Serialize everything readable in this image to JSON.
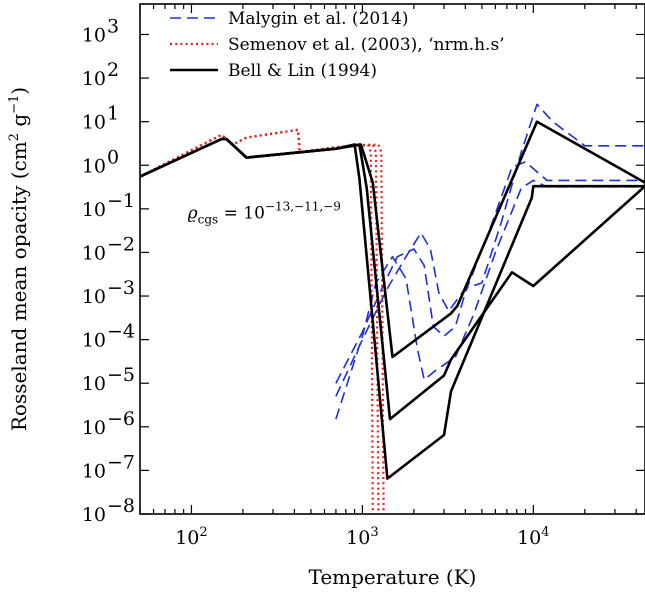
{
  "chart_data": {
    "type": "line",
    "xscale": "log",
    "yscale": "log",
    "xlim": [
      50,
      45000
    ],
    "ylim": [
      1e-08,
      5000
    ],
    "xlabel": "Temperature (K)",
    "ylabel": "Rosseland mean opacity (cm² g⁻¹)",
    "ylabel_parts": {
      "pre": "Rosseland mean opacity (cm",
      "exp1": "2",
      "mid": " g",
      "exp2": "−1",
      "post": ")"
    },
    "x_ticks": [
      {
        "value": 100,
        "base": "10",
        "exp": "2"
      },
      {
        "value": 1000,
        "base": "10",
        "exp": "3"
      },
      {
        "value": 10000,
        "base": "10",
        "exp": "4"
      }
    ],
    "y_ticks": [
      {
        "value": 1e-08,
        "base": "10",
        "exp": "−8"
      },
      {
        "value": 1e-07,
        "base": "10",
        "exp": "−7"
      },
      {
        "value": 1e-06,
        "base": "10",
        "exp": "−6"
      },
      {
        "value": 1e-05,
        "base": "10",
        "exp": "−5"
      },
      {
        "value": 0.0001,
        "base": "10",
        "exp": "−4"
      },
      {
        "value": 0.001,
        "base": "10",
        "exp": "−3"
      },
      {
        "value": 0.01,
        "base": "10",
        "exp": "−2"
      },
      {
        "value": 0.1,
        "base": "10",
        "exp": "−1"
      },
      {
        "value": 1,
        "base": "10",
        "exp": "0"
      },
      {
        "value": 10,
        "base": "10",
        "exp": "1"
      },
      {
        "value": 100,
        "base": "10",
        "exp": "2"
      },
      {
        "value": 1000,
        "base": "10",
        "exp": "3"
      }
    ],
    "annotation": {
      "rho": "ϱ",
      "sub": "cgs",
      "eq": " = 10",
      "sup": "−13,−11,−9",
      "x": 95,
      "y": 0.06
    },
    "legend": {
      "placement": "top-left",
      "entries": [
        {
          "label": "Malygin et al. (2014)",
          "color": "#1f2fd6",
          "style": "dashed"
        },
        {
          "label": "Semenov et al. (2003), ‘nrm.h.s’",
          "color": "#e8221e",
          "style": "dotted"
        },
        {
          "label": "Bell & Lin (1994)",
          "color": "#000000",
          "style": "solid"
        }
      ]
    },
    "series": [
      {
        "model": "Bell & Lin (1994)",
        "density": "1e-13",
        "color": "#000000",
        "style": "solid",
        "x": [
          50,
          150,
          160,
          210,
          700,
          900,
          960,
          1400,
          3000,
          3300,
          9800,
          10000,
          45000
        ],
        "y": [
          0.55,
          4.0,
          4.0,
          1.5,
          2.4,
          3.0,
          0.5,
          6.5e-08,
          6.5e-07,
          6.5e-06,
          0.18,
          0.33,
          0.33
        ]
      },
      {
        "model": "Bell & Lin (1994)",
        "density": "1e-11",
        "color": "#000000",
        "style": "solid",
        "x": [
          50,
          150,
          160,
          210,
          700,
          960,
          1060,
          1450,
          3000,
          3300,
          7500,
          10000,
          45000
        ],
        "y": [
          0.55,
          4.0,
          4.0,
          1.5,
          2.4,
          3.0,
          0.3,
          1.5e-06,
          1.5e-05,
          3.5e-05,
          0.0035,
          0.0017,
          0.33
        ]
      },
      {
        "model": "Bell & Lin (1994)",
        "density": "1e-9",
        "color": "#000000",
        "style": "solid",
        "x": [
          50,
          150,
          160,
          210,
          700,
          980,
          1150,
          1500,
          3300,
          3600,
          10500,
          45000
        ],
        "y": [
          0.55,
          4.0,
          4.0,
          1.5,
          2.4,
          3.0,
          0.4,
          4e-05,
          0.0004,
          0.0006,
          10,
          0.4
        ]
      },
      {
        "model": "Malygin et al. (2014)",
        "density": "1e-13",
        "color": "#1f2fd6",
        "style": "dashed",
        "x": [
          700,
          1000,
          1200,
          1500,
          1800,
          2100,
          2300,
          2700,
          3500,
          4500,
          6000,
          8500,
          10000,
          12000,
          20000,
          45000
        ],
        "y": [
          1.5e-06,
          0.00012,
          0.002,
          0.008,
          0.0025,
          6e-05,
          1.2e-05,
          2e-05,
          4e-05,
          0.0004,
          0.01,
          0.3,
          0.45,
          0.32,
          0.32,
          0.32
        ]
      },
      {
        "model": "Malygin et al. (2014)",
        "density": "1e-11",
        "color": "#1f2fd6",
        "style": "dashed",
        "x": [
          700,
          1000,
          1300,
          1600,
          2000,
          2300,
          2600,
          3000,
          3500,
          4000,
          5500,
          7500,
          9000,
          12000,
          20000,
          45000
        ],
        "y": [
          1e-05,
          0.00015,
          0.0015,
          0.008,
          0.012,
          0.005,
          0.0002,
          0.00012,
          0.0002,
          0.0012,
          0.03,
          0.9,
          1.2,
          0.45,
          0.45,
          0.45
        ]
      },
      {
        "model": "Malygin et al. (2014)",
        "density": "1e-9",
        "color": "#1f2fd6",
        "style": "dashed",
        "x": [
          700,
          1000,
          1400,
          1800,
          2200,
          2500,
          2800,
          3200,
          4000,
          5000,
          6500,
          8500,
          10500,
          13000,
          20000,
          45000
        ],
        "y": [
          5e-06,
          0.0001,
          0.0015,
          0.008,
          0.028,
          0.012,
          0.0012,
          0.00045,
          0.0015,
          0.002,
          0.05,
          2,
          25,
          10,
          2.8,
          2.8
        ]
      },
      {
        "model": "Semenov et al. (2003), ‘nrm.h.s’",
        "density": "1e-13",
        "color": "#e8221e",
        "style": "dotted",
        "x": [
          50,
          150,
          175,
          210,
          420,
          430,
          700,
          1080,
          1120,
          1150
        ],
        "y": [
          0.55,
          5.0,
          3.0,
          4.3,
          6.5,
          2.0,
          2.6,
          3.0,
          2.0,
          1e-08
        ]
      },
      {
        "model": "Semenov et al. (2003), ‘nrm.h.s’",
        "density": "1e-11",
        "color": "#e8221e",
        "style": "dotted",
        "x": [
          50,
          150,
          175,
          210,
          420,
          430,
          700,
          1150,
          1200,
          1240
        ],
        "y": [
          0.55,
          5.0,
          3.0,
          4.3,
          6.5,
          2.0,
          2.6,
          3.0,
          2.0,
          1e-08
        ]
      },
      {
        "model": "Semenov et al. (2003), ‘nrm.h.s’",
        "density": "1e-9",
        "color": "#e8221e",
        "style": "dotted",
        "x": [
          50,
          150,
          175,
          210,
          420,
          430,
          700,
          1240,
          1290,
          1330
        ],
        "y": [
          0.55,
          5.0,
          3.0,
          4.3,
          6.5,
          2.0,
          2.6,
          3.0,
          2.0,
          1e-08
        ]
      }
    ]
  }
}
